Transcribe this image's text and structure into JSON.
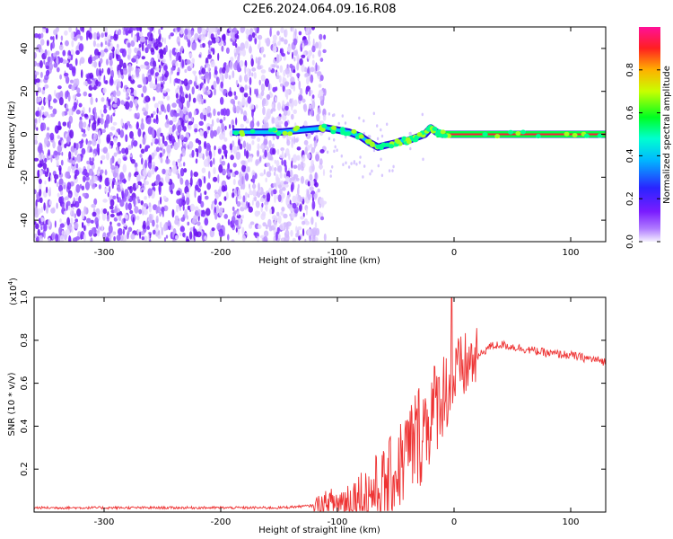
{
  "title": "C2E6.2024.064.09.16.R08",
  "chart_data": [
    {
      "type": "heatmap",
      "panel": "spectrogram",
      "xlabel": "Height of straight line (km)",
      "ylabel": "Frequency (Hz)",
      "xlim": [
        -360,
        130
      ],
      "ylim": [
        -50,
        50
      ],
      "xticks": [
        -300,
        -200,
        -100,
        0,
        100
      ],
      "yticks": [
        -40,
        -20,
        0,
        20,
        40
      ],
      "colorbar": {
        "label": "Normalized spectral amplitude",
        "range": [
          0.0,
          1.0
        ],
        "ticks": [
          "0.0",
          "0.2",
          "0.4",
          "0.6",
          "0.8"
        ],
        "colormap": "rainbow (white-violet-blue-cyan-green-yellow-red-magenta)"
      },
      "noise_region_x": [
        -360,
        -110
      ],
      "signal_trace": {
        "x": [
          -190,
          -170,
          -150,
          -130,
          -110,
          -100,
          -90,
          -80,
          -72,
          -65,
          -58,
          -50,
          -45,
          -40,
          -35,
          -30,
          -25,
          -20,
          -15,
          -10,
          0,
          50,
          100,
          130
        ],
        "y": [
          1,
          1,
          1,
          2,
          3,
          2,
          1,
          -1,
          -4,
          -6,
          -5,
          -4,
          -3,
          -3,
          -2,
          -1,
          0,
          3,
          1,
          0,
          0,
          0,
          0,
          0
        ]
      },
      "grid": false
    },
    {
      "type": "line",
      "panel": "snr",
      "xlabel": "Height of straight line (km)",
      "ylabel": "SNR (10 * v/v)",
      "yscale_label": "(x10",
      "yscale_exponent": "4",
      "xlim": [
        -360,
        130
      ],
      "ylim": [
        0.0,
        1.0
      ],
      "xticks": [
        -300,
        -200,
        -100,
        0,
        100
      ],
      "yticks": [
        "0.2",
        "0.4",
        "0.6",
        "0.8",
        "1.0"
      ],
      "color": "#ee3333",
      "series": [
        {
          "x": [
            -360,
            -300,
            -250,
            -200,
            -150,
            -120,
            -100,
            -80,
            -60,
            -50,
            -40,
            -30,
            -20,
            -10,
            0,
            10,
            20,
            30,
            40,
            60,
            80,
            100,
            120,
            130
          ],
          "y": [
            0.02,
            0.02,
            0.02,
            0.02,
            0.02,
            0.03,
            0.04,
            0.07,
            0.12,
            0.18,
            0.28,
            0.36,
            0.45,
            0.55,
            0.62,
            0.68,
            0.72,
            0.77,
            0.78,
            0.76,
            0.74,
            0.73,
            0.71,
            0.7
          ]
        }
      ],
      "grid": false
    }
  ]
}
